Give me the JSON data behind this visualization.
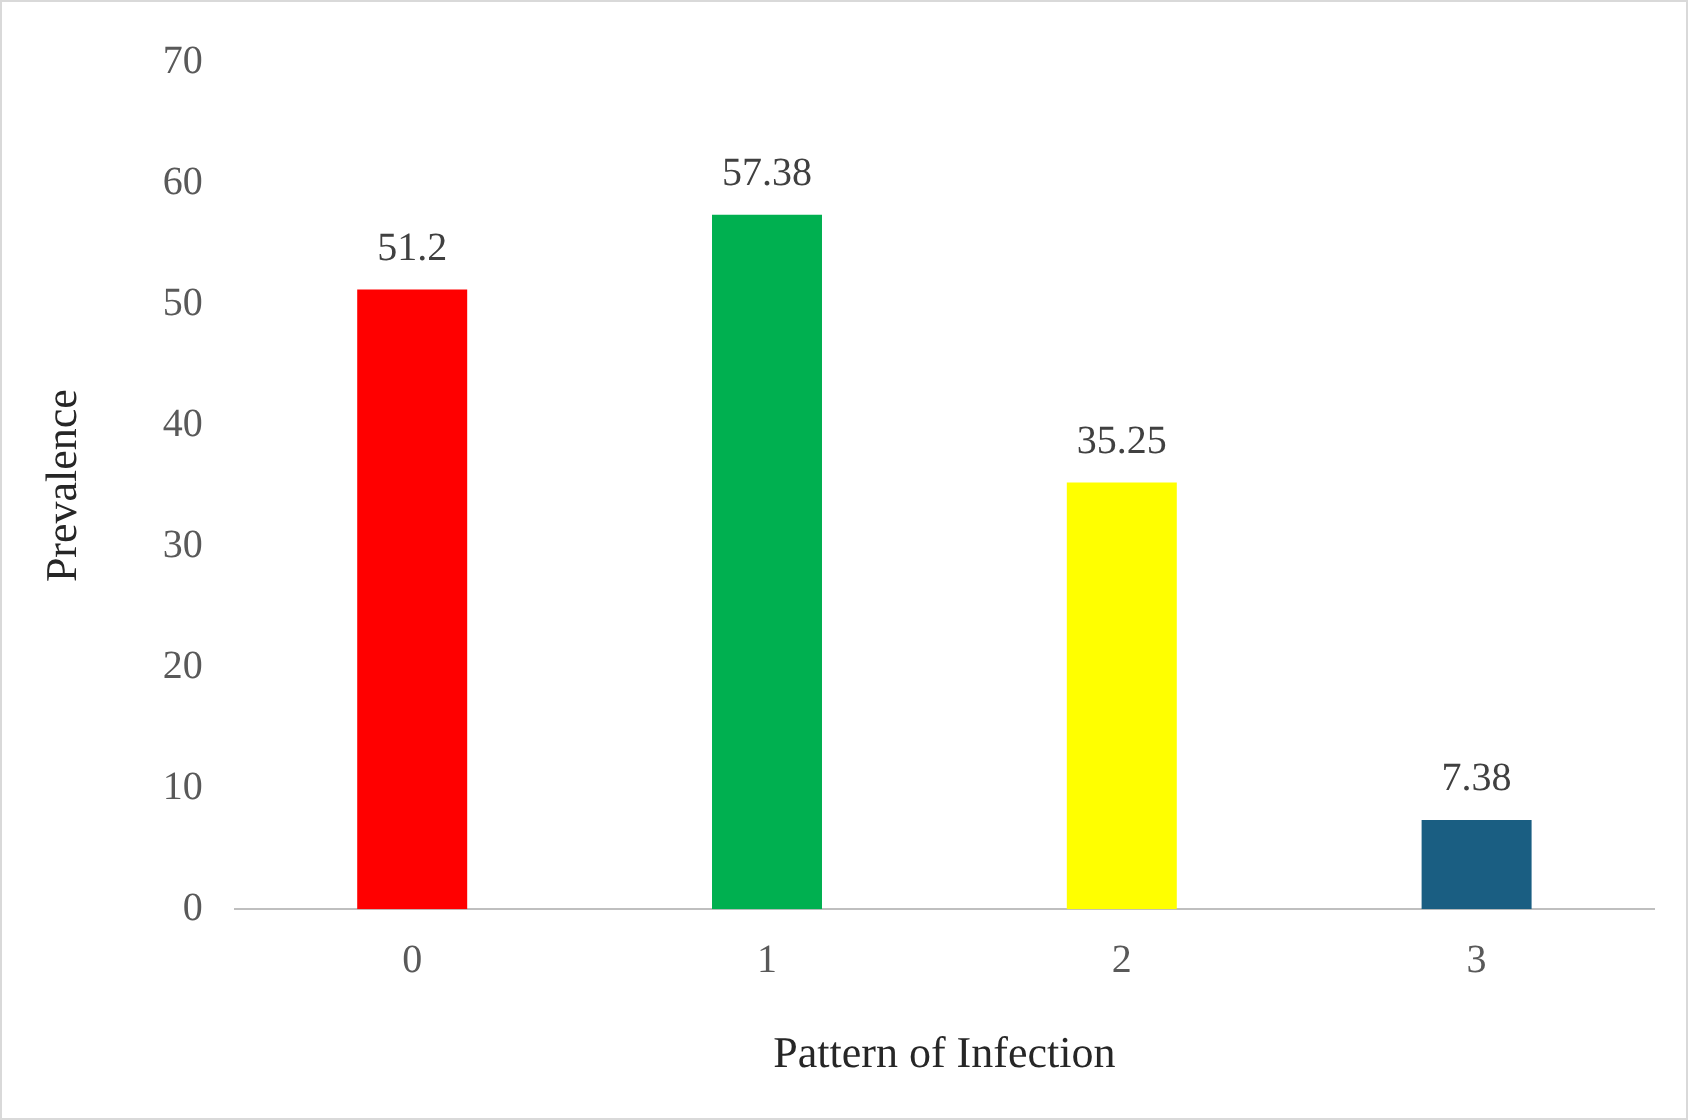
{
  "chart_data": {
    "type": "bar",
    "xlabel": "Pattern of Infection",
    "ylabel": "Prevalence",
    "categories": [
      "0",
      "1",
      "2",
      "3"
    ],
    "values": [
      51.2,
      57.38,
      35.25,
      7.38
    ],
    "colors": [
      "#ff0000",
      "#00b050",
      "#ffff00",
      "#1a5e82"
    ],
    "ylim": [
      0,
      70
    ],
    "yticks": [
      0,
      10,
      20,
      30,
      40,
      50,
      60,
      70
    ],
    "grid": false,
    "legend": false,
    "data_labels": true
  }
}
